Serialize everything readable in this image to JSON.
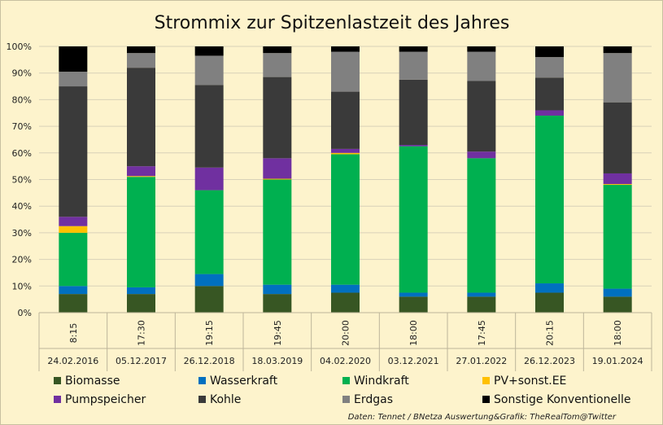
{
  "chart_data": {
    "type": "bar",
    "stacked": true,
    "title": "Strommix zur Spitzenlastzeit des Jahres",
    "xlabel": "",
    "ylabel": "",
    "ylim": [
      0,
      100
    ],
    "y_tick_labels": [
      "0%",
      "10%",
      "20%",
      "30%",
      "40%",
      "50%",
      "60%",
      "70%",
      "80%",
      "90%",
      "100%"
    ],
    "grid": true,
    "legend_position": "bottom",
    "categories": [
      {
        "time": "8:15",
        "date": "24.02.2016"
      },
      {
        "time": "17:30",
        "date": "05.12.2017"
      },
      {
        "time": "19:15",
        "date": "26.12.2018"
      },
      {
        "time": "19:45",
        "date": "18.03.2019"
      },
      {
        "time": "20:00",
        "date": "04.02.2020"
      },
      {
        "time": "18:00",
        "date": "03.12.2021"
      },
      {
        "time": "17:45",
        "date": "27.01.2022"
      },
      {
        "time": "20:15",
        "date": "26.12.2023"
      },
      {
        "time": "18:00",
        "date": "19.01.2024"
      }
    ],
    "series": [
      {
        "name": "Biomasse",
        "color": "#375623",
        "values": [
          7,
          7,
          10,
          7,
          7.5,
          6,
          6,
          7.5,
          6
        ]
      },
      {
        "name": "Wasserkraft",
        "color": "#0070c0",
        "values": [
          3,
          2.5,
          4.5,
          3.5,
          3,
          1.5,
          1.5,
          3.5,
          3
        ]
      },
      {
        "name": "Windkraft",
        "color": "#00b050",
        "values": [
          20,
          41.5,
          31.5,
          39.5,
          49,
          55,
          50.5,
          63,
          39
        ]
      },
      {
        "name": "PV+sonst.EE",
        "color": "#ffc000",
        "values": [
          2.5,
          0.3,
          0,
          0.3,
          0.5,
          0,
          0,
          0,
          0.3
        ]
      },
      {
        "name": "Pumpspeicher",
        "color": "#7030a0",
        "values": [
          3.5,
          3.7,
          8.5,
          7.7,
          1.5,
          0.5,
          2.5,
          2,
          4
        ]
      },
      {
        "name": "Kohle",
        "color": "#3a3a3a",
        "values": [
          49,
          37,
          31,
          30.5,
          21.5,
          24.5,
          26.5,
          12.3,
          26.7
        ]
      },
      {
        "name": "Erdgas",
        "color": "#808080",
        "values": [
          5.5,
          5.5,
          11,
          9,
          15,
          10.5,
          11,
          7.7,
          18.5
        ]
      },
      {
        "name": "Sonstige Konventionelle",
        "color": "#000000",
        "values": [
          9.5,
          2.5,
          3.5,
          2.5,
          2,
          2,
          2,
          4,
          2.5
        ]
      }
    ],
    "source_note": "Daten: Tennet / BNetza  Auswertung&Grafik: TheRealTom@Twitter"
  }
}
